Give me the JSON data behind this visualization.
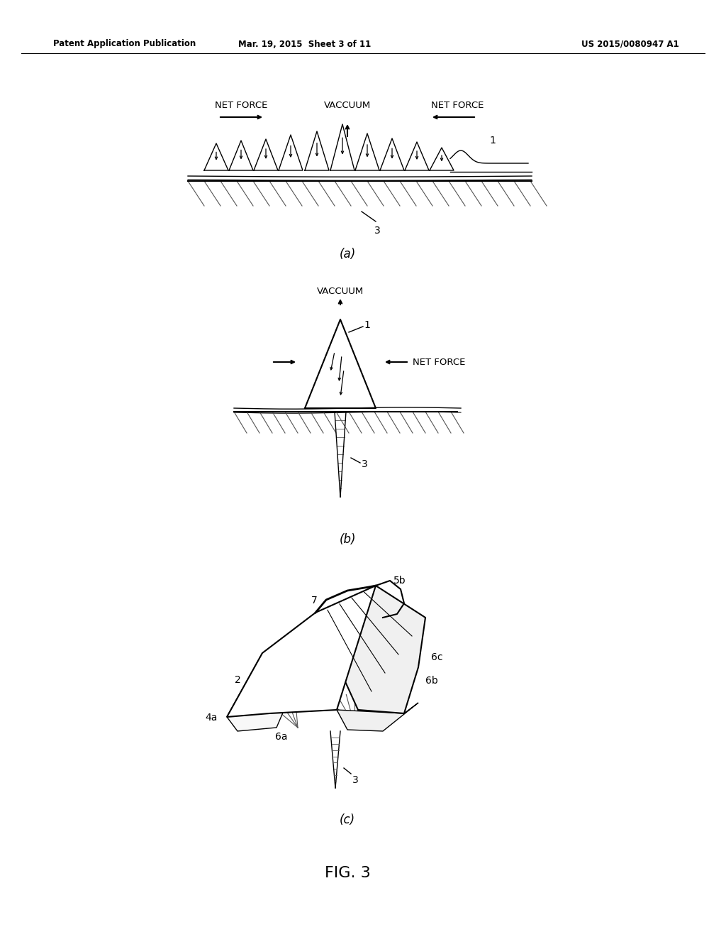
{
  "bg_color": "#ffffff",
  "line_color": "#000000",
  "header_left": "Patent Application Publication",
  "header_center": "Mar. 19, 2015  Sheet 3 of 11",
  "header_right": "US 2015/0080947 A1",
  "fig_label": "FIG. 3",
  "sub_a_label": "(a)",
  "sub_b_label": "(b)",
  "sub_c_label": "(c)"
}
